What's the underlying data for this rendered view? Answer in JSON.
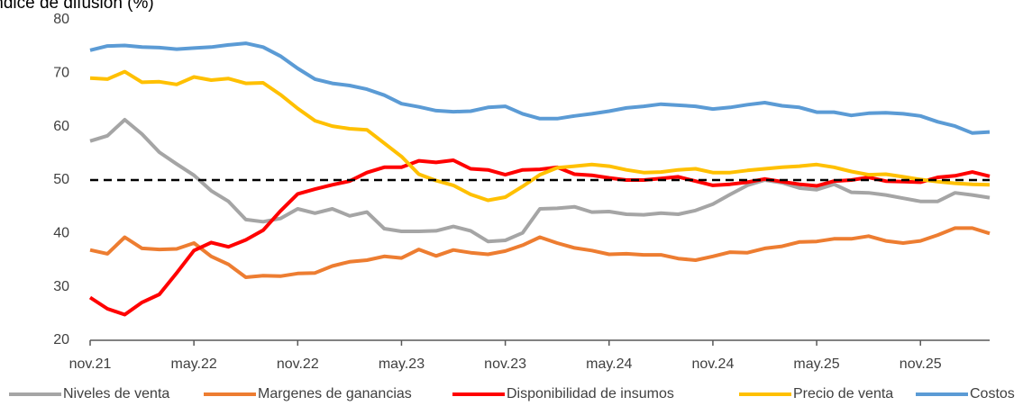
{
  "chart_data": {
    "type": "line",
    "title": "Índice de difusión (%)",
    "categories": [
      "nov.21",
      null,
      null,
      null,
      null,
      null,
      "may.22",
      null,
      null,
      null,
      null,
      null,
      "nov.22",
      null,
      null,
      null,
      null,
      null,
      "may.23",
      null,
      null,
      null,
      null,
      null,
      "nov.23",
      null,
      null,
      null,
      null,
      null,
      "may.24",
      null,
      null,
      null,
      null,
      null,
      "nov.24",
      null,
      null,
      null,
      null,
      null,
      "may.25",
      null,
      null,
      null,
      null,
      null,
      "nov.25",
      null,
      null,
      null,
      null
    ],
    "ylim": [
      20,
      80
    ],
    "yticks": [
      20,
      30,
      40,
      50,
      60,
      70,
      80
    ],
    "hline": {
      "value": 50,
      "color": "#000000"
    },
    "legend": "bottom",
    "series": [
      {
        "name": "Niveles de venta",
        "color": "#a5a5a5",
        "values": [
          57.3,
          58.3,
          61.3,
          58.6,
          55.2,
          53.0,
          50.9,
          48.0,
          46.0,
          42.6,
          42.2,
          42.8,
          44.6,
          43.8,
          44.6,
          43.3,
          44.0,
          40.9,
          40.4,
          40.4,
          40.5,
          41.3,
          40.5,
          38.5,
          38.7,
          40.1,
          44.6,
          44.7,
          45.0,
          44.0,
          44.1,
          43.6,
          43.5,
          43.8,
          43.6,
          44.3,
          45.5,
          47.3,
          49.0,
          50.0,
          49.5,
          48.5,
          48.2,
          49.2,
          47.7,
          47.6,
          47.2,
          46.6,
          46.0,
          46.0,
          47.6,
          47.2,
          46.7
        ]
      },
      {
        "name": "Margenes de ganancias",
        "color": "#ed7d31",
        "values": [
          36.9,
          36.2,
          39.3,
          37.2,
          37.0,
          37.1,
          38.2,
          35.7,
          34.2,
          31.8,
          32.1,
          32.0,
          32.5,
          32.6,
          33.9,
          34.7,
          35.0,
          35.7,
          35.4,
          37.0,
          35.8,
          36.9,
          36.4,
          36.1,
          36.7,
          37.8,
          39.3,
          38.2,
          37.3,
          36.8,
          36.1,
          36.2,
          36.0,
          36.0,
          35.3,
          35.0,
          35.7,
          36.5,
          36.4,
          37.2,
          37.6,
          38.4,
          38.5,
          39.0,
          39.0,
          39.5,
          38.6,
          38.2,
          38.6,
          39.7,
          41.0,
          41.0,
          40.0
        ]
      },
      {
        "name": "Disponibilidad de insumos",
        "color": "#ff0000",
        "values": [
          28.0,
          25.9,
          24.8,
          27.1,
          28.6,
          32.6,
          36.8,
          38.3,
          37.5,
          38.8,
          40.6,
          44.2,
          47.4,
          48.3,
          49.1,
          49.8,
          51.4,
          52.4,
          52.4,
          53.6,
          53.3,
          53.7,
          52.1,
          51.9,
          51.0,
          51.9,
          52.0,
          52.4,
          51.1,
          50.9,
          50.4,
          50.0,
          50.0,
          50.3,
          50.6,
          49.8,
          49.0,
          49.2,
          49.6,
          50.2,
          49.7,
          49.2,
          48.9,
          49.8,
          50.0,
          50.5,
          49.8,
          49.7,
          49.6,
          50.5,
          50.8,
          51.5,
          50.7
        ]
      },
      {
        "name": "Precio de venta",
        "color": "#ffc000",
        "values": [
          69.1,
          68.9,
          70.3,
          68.3,
          68.4,
          67.9,
          69.3,
          68.7,
          69.0,
          68.1,
          68.2,
          66.0,
          63.4,
          61.1,
          60.1,
          59.6,
          59.4,
          56.9,
          54.4,
          51.1,
          49.9,
          49.0,
          47.3,
          46.2,
          46.8,
          48.8,
          51.0,
          52.3,
          52.6,
          52.9,
          52.6,
          51.9,
          51.4,
          51.5,
          51.9,
          52.1,
          51.4,
          51.4,
          51.8,
          52.1,
          52.4,
          52.6,
          52.9,
          52.4,
          51.6,
          51.0,
          51.1,
          50.6,
          50.1,
          49.7,
          49.4,
          49.2,
          49.1
        ]
      },
      {
        "name": "Costos",
        "color": "#5b9bd5",
        "values": [
          74.3,
          75.1,
          75.2,
          74.9,
          74.8,
          74.5,
          74.7,
          74.9,
          75.3,
          75.6,
          74.9,
          73.2,
          70.9,
          68.9,
          68.1,
          67.7,
          67.0,
          65.9,
          64.3,
          63.7,
          63.0,
          62.8,
          62.9,
          63.6,
          63.8,
          62.4,
          61.5,
          61.5,
          62.0,
          62.4,
          62.9,
          63.5,
          63.8,
          64.2,
          64.0,
          63.8,
          63.3,
          63.6,
          64.1,
          64.5,
          63.9,
          63.6,
          62.7,
          62.7,
          62.1,
          62.5,
          62.6,
          62.4,
          62.0,
          60.9,
          60.1,
          58.8,
          59.0
        ]
      }
    ]
  }
}
